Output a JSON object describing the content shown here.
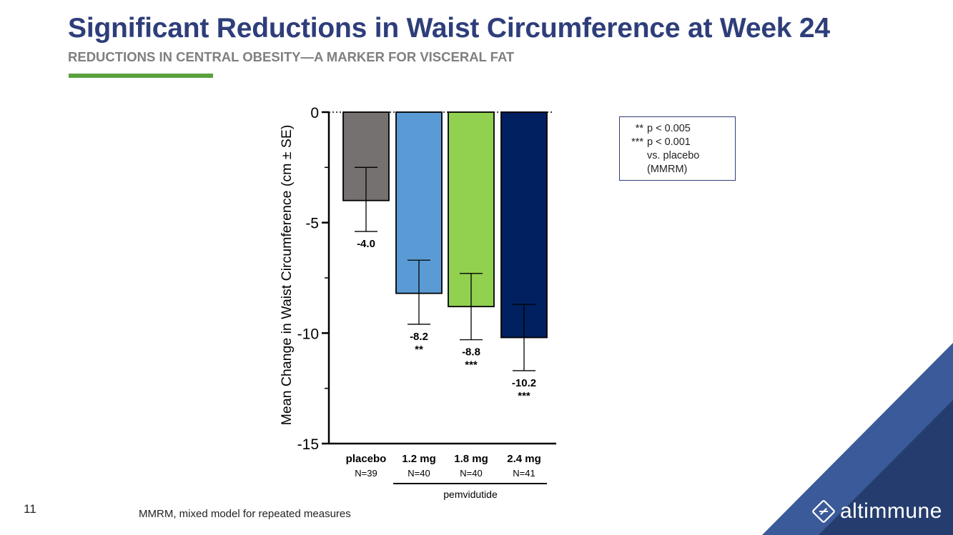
{
  "slide": {
    "title": "Significant Reductions in Waist Circumference at Week 24",
    "subtitle": "REDUCTIONS IN CENTRAL OBESITY—A MARKER FOR VISCERAL FAT",
    "slide_number": "11",
    "footnote": "MMRM, mixed model for repeated measures",
    "brand": "altimmune",
    "pvalue_legend": [
      {
        "stars": "**",
        "text": "p  < 0.005"
      },
      {
        "stars": "***",
        "text": "p  < 0.001"
      },
      {
        "stars": "",
        "text": "vs. placebo"
      },
      {
        "stars": "",
        "text": "(MMRM)"
      }
    ]
  },
  "colors": {
    "title": "#2e3e7a",
    "accent_green": "#5aa13e",
    "corner_dark": "#253d6e",
    "corner_light": "#3b5a99"
  },
  "chart_data": {
    "type": "bar",
    "title": "",
    "xlabel": "",
    "ylabel": "Mean Change in Waist Circumference (cm ± SE)",
    "ylim": [
      -15,
      0
    ],
    "yticks": [
      0,
      -5,
      -10,
      -15
    ],
    "categories": [
      "placebo",
      "1.2 mg",
      "1.8 mg",
      "2.4 mg"
    ],
    "n_labels": [
      "N=39",
      "N=40",
      "N=40",
      "N=41"
    ],
    "values": [
      -4.0,
      -8.2,
      -8.8,
      -10.2
    ],
    "value_labels": [
      "-4.0",
      "-8.2",
      "-8.8",
      "-10.2"
    ],
    "se_upper": [
      -2.5,
      -6.7,
      -7.3,
      -8.7
    ],
    "se_lower": [
      -5.4,
      -9.6,
      -10.3,
      -11.7
    ],
    "significance": [
      "",
      "**",
      "***",
      "***"
    ],
    "bar_colors": [
      "#767171",
      "#5b9bd5",
      "#92d050",
      "#002060"
    ],
    "group_label": "pemvidutide",
    "group_categories": [
      "1.2 mg",
      "1.8 mg",
      "2.4 mg"
    ]
  }
}
